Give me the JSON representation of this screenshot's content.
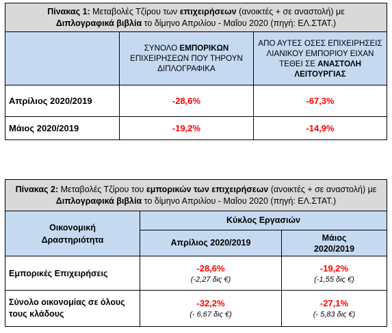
{
  "table1": {
    "caption": {
      "prefix": "Πίνακας 1:",
      "text1": " Μεταβολές Τζίρου των ",
      "bold1": "επιχειρήσεων",
      "text2": "  (ανοικτές + σε αναστολή) με",
      "bold2": "Διπλογραφικά βιβλία",
      "text3": " το δίμηνο Απριλίου - Μαΐου 2020  (πηγή: ΕΛ.ΣΤΑΤ.)"
    },
    "col1_header": {
      "pre": "ΣΥΝΟΛΟ ",
      "bold": "ΕΜΠΟΡΙΚΩΝ",
      "post": "ΕΠΙΧΕΙΡΗΣΕΩΝ ΠΟΥ ΤΗΡΟΥΝ ΔΙΠΛΟΓΡΑΦΙΚΑ"
    },
    "col2_header": {
      "pre": "ΑΠΟ ΑΥΤΕΣ ΟΣΕΣ ΕΠΙΧΕΙΡΗΣΕΙΣ ΛΙΑΝΙΚΟΥ ΕΜΠΟΡΙΟΥ ΕΙΧΑΝ ΤΕΘΕΙ ΣΕ ",
      "bold": "ΑΝΑΣΤΟΛΗ ΛΕΙΤΟΥΡΓΙΑΣ"
    },
    "rows": [
      {
        "label": "Απρίλιος 2020/2019",
        "v1": "-28,6%",
        "v2": "-67,3%"
      },
      {
        "label": "Μάιος  2020/2019",
        "v1": "-19,2%",
        "v2": "-14,9%"
      }
    ]
  },
  "table2": {
    "caption": {
      "prefix": "Πίνακας 2:",
      "text1": " Μεταβολές Τζίρου του ",
      "bold1": "εμπορικών των επιχειρήσεων",
      "text2": " (ανοικτές + σε αναστολή) με ",
      "bold2": "Διπλογραφικά βιβλία",
      "text3": " το δίμηνο Απριλίου - Μαΐου 2020  (πηγή: ΕΛ.ΣΤΑΤ.)"
    },
    "header_activity": "Οικονομική Δραστηριότητα",
    "header_cycle": "Κύκλος Εργασιών",
    "header_april": "Απρίλιος 2020/2019",
    "header_may_line1": "Μάιος",
    "header_may_line2": "2020/2019",
    "rows": [
      {
        "label": "Εμπορικές Επιχειρήσεις",
        "v1": "-28,6%",
        "s1": "(-2,27 δις €)",
        "v2": "-19,2%",
        "s2": "(-1,55 δις €)"
      },
      {
        "label": "Σύνολο οικονομίας σε όλους τους κλάδους",
        "v1": "-32,2%",
        "s1": "(- 6,67 δις €)",
        "v2": "-27,1%",
        "s2": "(- 5,83 δις €)"
      }
    ]
  }
}
